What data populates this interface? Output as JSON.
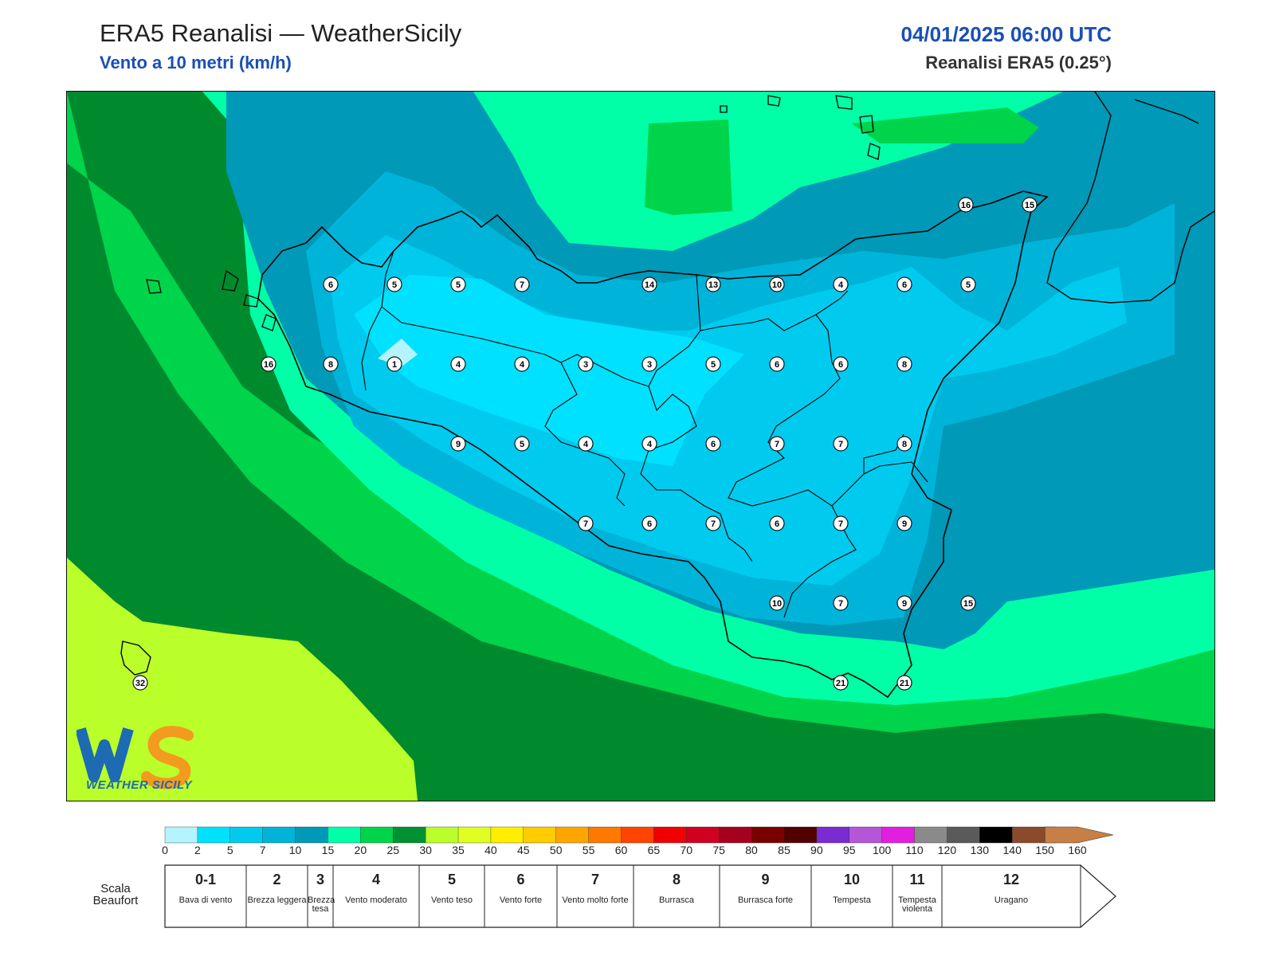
{
  "header": {
    "title": "ERA5 Reanalisi — WeatherSicily",
    "subtitle": "Vento a 10 metri (km/h)",
    "datetime": "04/01/2025 06:00 UTC",
    "source": "Reanalisi ERA5 (0.25°)"
  },
  "logo": {
    "text": "WEATHER SICILY",
    "mark": "WS"
  },
  "colorbar": {
    "ticks": [
      "0",
      "2",
      "5",
      "7",
      "10",
      "15",
      "20",
      "25",
      "30",
      "35",
      "40",
      "45",
      "50",
      "55",
      "60",
      "65",
      "70",
      "75",
      "80",
      "85",
      "90",
      "95",
      "100",
      "110",
      "120",
      "130",
      "140",
      "150",
      "160"
    ],
    "colors": [
      "#b3f4ff",
      "#00e1ff",
      "#00cbef",
      "#00b4d9",
      "#0099b8",
      "#00ffa6",
      "#00d44a",
      "#009133",
      "#bbff2a",
      "#dfff22",
      "#ffee00",
      "#ffcc00",
      "#ffa500",
      "#ff7800",
      "#ff4400",
      "#f00000",
      "#d10020",
      "#a60020",
      "#7a0000",
      "#520000",
      "#7a2bd1",
      "#b555d8",
      "#e21fe0",
      "#8a8a8a",
      "#5a5a5a",
      "#000000",
      "#8b4a2a",
      "#c77f45"
    ]
  },
  "beaufort": {
    "label": "Scala Beaufort",
    "classes": [
      {
        "num": "0-1",
        "desc": "Bava di vento"
      },
      {
        "num": "2",
        "desc": "Brezza leggera"
      },
      {
        "num": "3",
        "desc": "Brezza tesa"
      },
      {
        "num": "4",
        "desc": "Vento moderato"
      },
      {
        "num": "5",
        "desc": "Vento teso"
      },
      {
        "num": "6",
        "desc": "Vento forte"
      },
      {
        "num": "7",
        "desc": "Vento molto forte"
      },
      {
        "num": "8",
        "desc": "Burrasca"
      },
      {
        "num": "9",
        "desc": "Burrasca forte"
      },
      {
        "num": "10",
        "desc": "Tempesta"
      },
      {
        "num": "11",
        "desc": "Tempesta violenta"
      },
      {
        "num": "12",
        "desc": "Uragano"
      }
    ]
  },
  "stations": [
    {
      "value": 16,
      "fill": "#ffffff"
    },
    {
      "value": 15,
      "fill": "#ffffff"
    },
    {
      "value": 6
    },
    {
      "value": 5
    },
    {
      "value": 5
    },
    {
      "value": 7
    },
    {
      "value": 14
    },
    {
      "value": 13
    },
    {
      "value": 10
    },
    {
      "value": 4
    },
    {
      "value": 6
    },
    {
      "value": 5
    },
    {
      "value": 16
    },
    {
      "value": 8
    },
    {
      "value": 1
    },
    {
      "value": 4
    },
    {
      "value": 4
    },
    {
      "value": 3
    },
    {
      "value": 3
    },
    {
      "value": 5
    },
    {
      "value": 6
    },
    {
      "value": 6
    },
    {
      "value": 8
    },
    {
      "value": 9
    },
    {
      "value": 5
    },
    {
      "value": 4
    },
    {
      "value": 4
    },
    {
      "value": 6
    },
    {
      "value": 7
    },
    {
      "value": 7
    },
    {
      "value": 8
    },
    {
      "value": 7
    },
    {
      "value": 6
    },
    {
      "value": 7
    },
    {
      "value": 6
    },
    {
      "value": 7
    },
    {
      "value": 9
    },
    {
      "value": 10
    },
    {
      "value": 7
    },
    {
      "value": 9
    },
    {
      "value": 15
    },
    {
      "value": 21
    },
    {
      "value": 21
    },
    {
      "value": 32
    }
  ]
}
